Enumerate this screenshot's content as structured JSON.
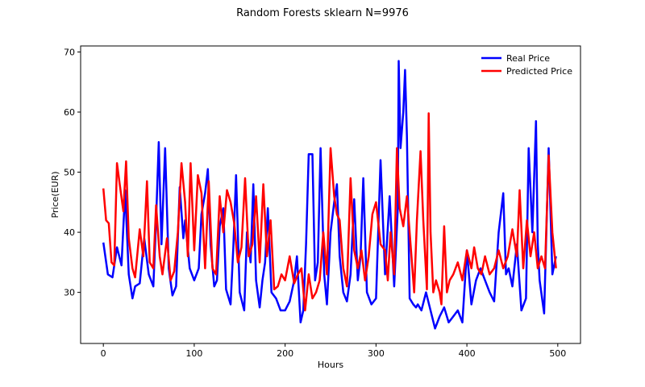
{
  "chart_data": {
    "type": "line",
    "title": "Random Forests sklearn N=9976",
    "xlabel": "Hours",
    "ylabel": "Price(EUR)",
    "xlim": [
      -25,
      525
    ],
    "ylim": [
      21.5,
      71
    ],
    "xticks": [
      0,
      100,
      200,
      300,
      400,
      500
    ],
    "yticks": [
      30,
      40,
      50,
      60,
      70
    ],
    "legend_position": "top-right",
    "grid": false,
    "series": [
      {
        "name": "Real Price",
        "color": "#0000ff",
        "points": [
          [
            0,
            38.3
          ],
          [
            5,
            33
          ],
          [
            10,
            32.5
          ],
          [
            15,
            37.5
          ],
          [
            20,
            34.5
          ],
          [
            24,
            47
          ],
          [
            28,
            33
          ],
          [
            32,
            29
          ],
          [
            35,
            31
          ],
          [
            40,
            31.5
          ],
          [
            45,
            39
          ],
          [
            50,
            33
          ],
          [
            55,
            31
          ],
          [
            58,
            42
          ],
          [
            61,
            55
          ],
          [
            64,
            38
          ],
          [
            68,
            54
          ],
          [
            72,
            34
          ],
          [
            76,
            29.5
          ],
          [
            80,
            31
          ],
          [
            84,
            47.5
          ],
          [
            88,
            39
          ],
          [
            90,
            42
          ],
          [
            95,
            34
          ],
          [
            100,
            32
          ],
          [
            105,
            34
          ],
          [
            108,
            43
          ],
          [
            112,
            46.5
          ],
          [
            115,
            50.5
          ],
          [
            118,
            38
          ],
          [
            122,
            31
          ],
          [
            125,
            32
          ],
          [
            128,
            41
          ],
          [
            132,
            44
          ],
          [
            135,
            30.5
          ],
          [
            140,
            28
          ],
          [
            143,
            37.5
          ],
          [
            146,
            49.5
          ],
          [
            150,
            30
          ],
          [
            155,
            27
          ],
          [
            158,
            40
          ],
          [
            162,
            35
          ],
          [
            165,
            48
          ],
          [
            168,
            32
          ],
          [
            172,
            27.5
          ],
          [
            175,
            32
          ],
          [
            178,
            35
          ],
          [
            181,
            44
          ],
          [
            185,
            30
          ],
          [
            190,
            29
          ],
          [
            195,
            27
          ],
          [
            200,
            27
          ],
          [
            205,
            28.5
          ],
          [
            210,
            32
          ],
          [
            213,
            36
          ],
          [
            217,
            25
          ],
          [
            220,
            27
          ],
          [
            223,
            38
          ],
          [
            226,
            53
          ],
          [
            230,
            53
          ],
          [
            233,
            32
          ],
          [
            236,
            35
          ],
          [
            239,
            54
          ],
          [
            243,
            33
          ],
          [
            246,
            28
          ],
          [
            250,
            40
          ],
          [
            254,
            45
          ],
          [
            257,
            48
          ],
          [
            260,
            36
          ],
          [
            264,
            30
          ],
          [
            268,
            28.5
          ],
          [
            272,
            33
          ],
          [
            276,
            45.5
          ],
          [
            280,
            32
          ],
          [
            283,
            36
          ],
          [
            286,
            49
          ],
          [
            290,
            30
          ],
          [
            295,
            28
          ],
          [
            300,
            29
          ],
          [
            305,
            52
          ],
          [
            310,
            33
          ],
          [
            315,
            46
          ],
          [
            320,
            31
          ],
          [
            324,
            44
          ],
          [
            325,
            68.5
          ],
          [
            327,
            54
          ],
          [
            330,
            60
          ],
          [
            332,
            67
          ],
          [
            334,
            56
          ],
          [
            337,
            29
          ],
          [
            341,
            28
          ],
          [
            344,
            27.5
          ],
          [
            346,
            28
          ],
          [
            350,
            27
          ],
          [
            355,
            30
          ],
          [
            360,
            27
          ],
          [
            365,
            24
          ],
          [
            370,
            26
          ],
          [
            375,
            27.5
          ],
          [
            380,
            25
          ],
          [
            385,
            26
          ],
          [
            390,
            27
          ],
          [
            395,
            25
          ],
          [
            400,
            37
          ],
          [
            405,
            28
          ],
          [
            410,
            32
          ],
          [
            415,
            34
          ],
          [
            420,
            32
          ],
          [
            425,
            30
          ],
          [
            430,
            28.5
          ],
          [
            435,
            40
          ],
          [
            440,
            46.5
          ],
          [
            443,
            33
          ],
          [
            446,
            34
          ],
          [
            450,
            31
          ],
          [
            455,
            38
          ],
          [
            460,
            27
          ],
          [
            465,
            29
          ],
          [
            468,
            54
          ],
          [
            472,
            40
          ],
          [
            476,
            58.5
          ],
          [
            478,
            38
          ],
          [
            480,
            32
          ],
          [
            485,
            26.5
          ],
          [
            490,
            54
          ],
          [
            494,
            33
          ],
          [
            498,
            36
          ]
        ]
      },
      {
        "name": "Predicted Price",
        "color": "#ff0000",
        "points": [
          [
            0,
            47.3
          ],
          [
            3,
            42
          ],
          [
            6,
            41.5
          ],
          [
            9,
            35
          ],
          [
            12,
            34.5
          ],
          [
            15,
            51.5
          ],
          [
            18,
            48
          ],
          [
            22,
            43.5
          ],
          [
            25,
            51.8
          ],
          [
            28,
            39
          ],
          [
            32,
            34
          ],
          [
            35,
            32.5
          ],
          [
            40,
            40.5
          ],
          [
            44,
            36
          ],
          [
            48,
            48.5
          ],
          [
            51,
            35
          ],
          [
            55,
            34
          ],
          [
            58,
            44.5
          ],
          [
            62,
            36
          ],
          [
            65,
            33
          ],
          [
            70,
            39
          ],
          [
            74,
            32
          ],
          [
            78,
            33.5
          ],
          [
            82,
            40
          ],
          [
            86,
            51.5
          ],
          [
            90,
            45
          ],
          [
            93,
            36
          ],
          [
            96,
            51.5
          ],
          [
            100,
            37
          ],
          [
            104,
            49.5
          ],
          [
            108,
            46.5
          ],
          [
            112,
            34
          ],
          [
            116,
            48.5
          ],
          [
            120,
            34
          ],
          [
            124,
            33
          ],
          [
            128,
            46
          ],
          [
            132,
            40
          ],
          [
            136,
            47
          ],
          [
            140,
            45
          ],
          [
            144,
            41.5
          ],
          [
            148,
            35
          ],
          [
            152,
            37.5
          ],
          [
            156,
            49
          ],
          [
            160,
            36
          ],
          [
            164,
            38
          ],
          [
            168,
            46
          ],
          [
            172,
            35
          ],
          [
            176,
            48
          ],
          [
            180,
            36
          ],
          [
            184,
            42
          ],
          [
            188,
            30.5
          ],
          [
            192,
            31
          ],
          [
            196,
            33
          ],
          [
            200,
            32
          ],
          [
            205,
            36
          ],
          [
            210,
            31.5
          ],
          [
            214,
            33
          ],
          [
            218,
            34
          ],
          [
            222,
            27
          ],
          [
            226,
            33
          ],
          [
            230,
            29
          ],
          [
            234,
            30
          ],
          [
            238,
            32
          ],
          [
            242,
            40
          ],
          [
            246,
            33
          ],
          [
            250,
            54
          ],
          [
            254,
            46
          ],
          [
            257,
            43
          ],
          [
            260,
            42
          ],
          [
            264,
            34
          ],
          [
            268,
            31
          ],
          [
            272,
            49
          ],
          [
            276,
            37
          ],
          [
            280,
            34
          ],
          [
            284,
            37
          ],
          [
            288,
            32
          ],
          [
            292,
            36
          ],
          [
            296,
            43
          ],
          [
            300,
            45
          ],
          [
            305,
            38
          ],
          [
            310,
            37
          ],
          [
            313,
            32
          ],
          [
            316,
            40
          ],
          [
            320,
            33
          ],
          [
            323,
            54
          ],
          [
            326,
            44
          ],
          [
            330,
            41
          ],
          [
            334,
            46
          ],
          [
            338,
            38
          ],
          [
            342,
            30
          ],
          [
            345,
            42
          ],
          [
            349,
            53.5
          ],
          [
            352,
            42
          ],
          [
            356,
            30.5
          ],
          [
            358,
            59.8
          ],
          [
            360,
            40
          ],
          [
            363,
            30
          ],
          [
            366,
            32
          ],
          [
            370,
            30
          ],
          [
            372,
            28
          ],
          [
            375,
            41
          ],
          [
            378,
            30
          ],
          [
            381,
            32
          ],
          [
            385,
            33
          ],
          [
            390,
            35
          ],
          [
            395,
            32
          ],
          [
            400,
            37
          ],
          [
            405,
            34
          ],
          [
            408,
            37.5
          ],
          [
            412,
            34
          ],
          [
            416,
            33
          ],
          [
            420,
            36
          ],
          [
            425,
            33
          ],
          [
            430,
            34
          ],
          [
            435,
            37
          ],
          [
            440,
            34
          ],
          [
            445,
            36
          ],
          [
            450,
            40.5
          ],
          [
            455,
            36
          ],
          [
            458,
            47
          ],
          [
            462,
            34
          ],
          [
            466,
            42
          ],
          [
            470,
            36
          ],
          [
            474,
            40
          ],
          [
            478,
            34
          ],
          [
            482,
            36
          ],
          [
            486,
            34
          ],
          [
            490,
            52.8
          ],
          [
            494,
            40
          ],
          [
            498,
            34
          ]
        ]
      }
    ]
  }
}
